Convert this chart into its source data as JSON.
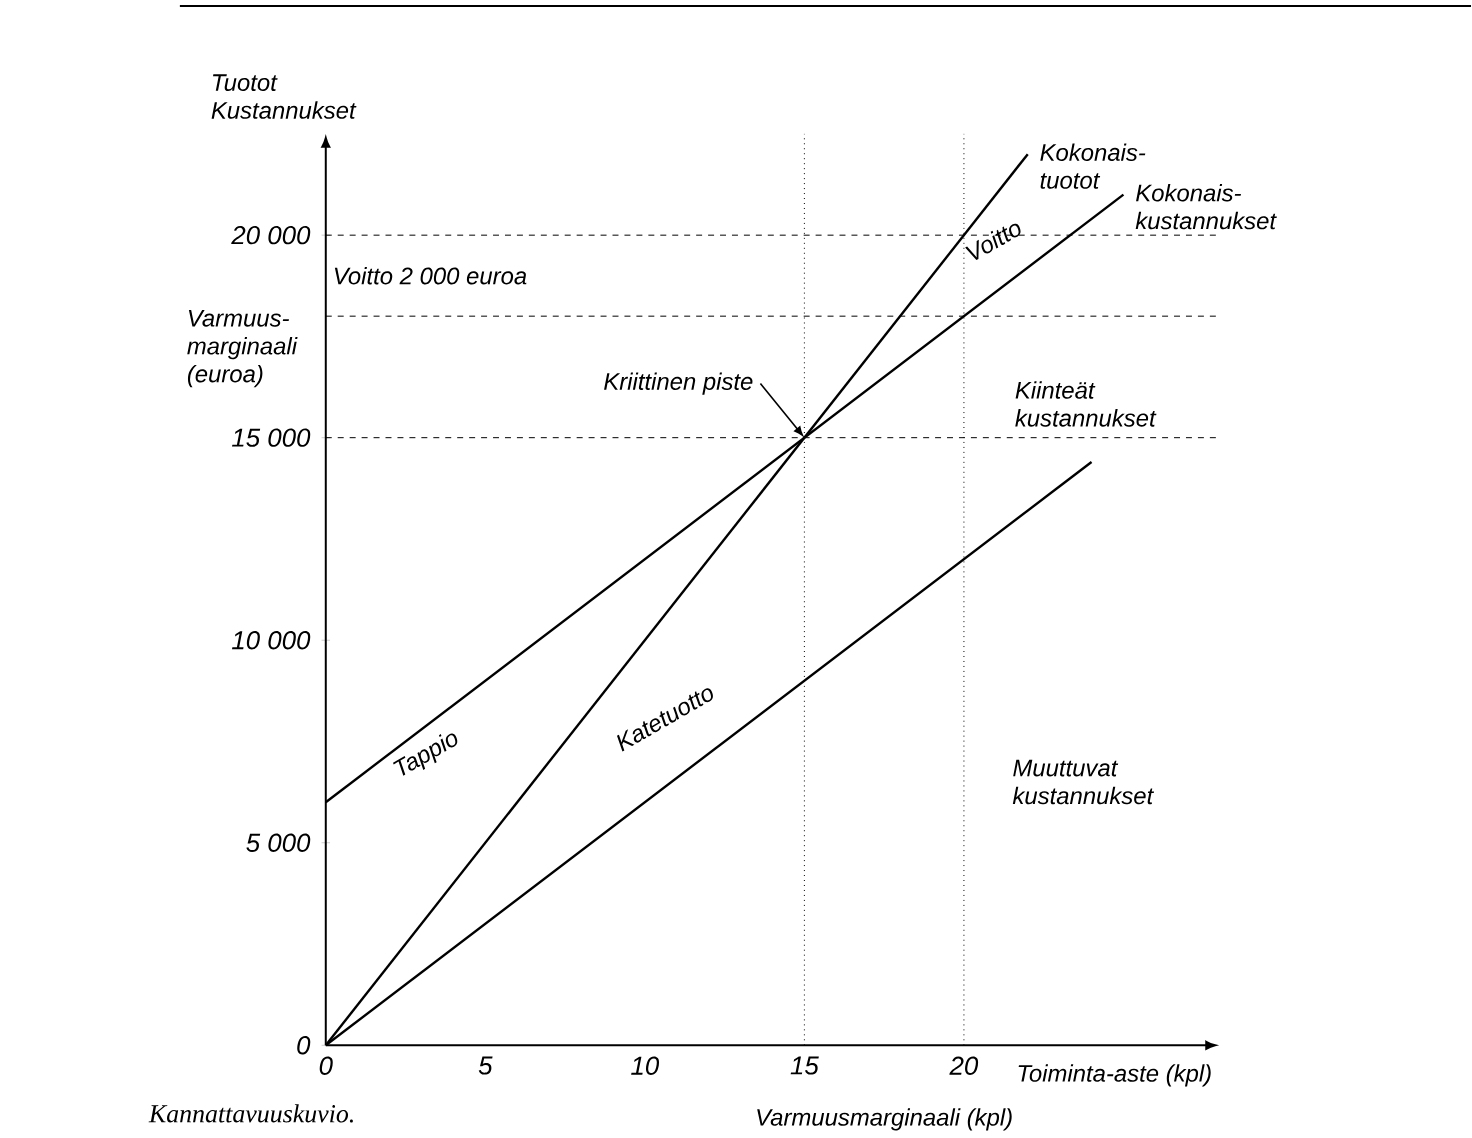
{
  "chart_data": {
    "type": "line",
    "xlabel": "Toiminta-aste (kpl)",
    "ylabel": "Tuotot Kustannukset",
    "xlim": [
      0,
      28
    ],
    "ylim": [
      0,
      22500
    ],
    "xticks": [
      0,
      5,
      10,
      15,
      20
    ],
    "yticks": [
      0,
      {
        "value": 5000,
        "label": "5 000"
      },
      {
        "value": 10000,
        "label": "10 000"
      },
      {
        "value": 15000,
        "label": "15 000"
      },
      {
        "value": 20000,
        "label": "20 000"
      }
    ],
    "series": [
      {
        "name": "Kokonais- tuotot",
        "color": "#000000",
        "x": [
          0,
          22
        ],
        "values": [
          0,
          22000
        ]
      },
      {
        "name": "Kokonais- kustannukset",
        "color": "#000000",
        "x": [
          0,
          25
        ],
        "values": [
          6000,
          21000
        ]
      },
      {
        "color": "#000000",
        "x": [
          0,
          24
        ],
        "values": [
          0,
          14400
        ]
      }
    ],
    "ref_lines": [
      {
        "axis": "x",
        "value": 15,
        "line_style": "dotted"
      },
      {
        "axis": "x",
        "value": 20,
        "line_style": "dotted"
      },
      {
        "axis": "y",
        "value": 15000,
        "line_style": "dashed"
      },
      {
        "axis": "y",
        "value": 18000,
        "line_style": "dashed"
      },
      {
        "axis": "y",
        "value": 20000,
        "line_style": "dashed"
      }
    ],
    "annotations": [
      {
        "text": "Kriittinen piste",
        "x": 15,
        "y": 15000
      },
      "Tappio",
      "Katetuotto",
      {
        "text": "Voitto",
        "x": 20,
        "y": 19000
      },
      {
        "text": "Kiinteät kustannukset",
        "x": 21,
        "y": 15000
      },
      "Muuttuvat kustannukset",
      "Voitto 2 000 euroa",
      "Varmuus- marginaali (euroa)",
      "Varmuusmarginaali (kpl)",
      "Kannattavuuskuvio."
    ]
  }
}
